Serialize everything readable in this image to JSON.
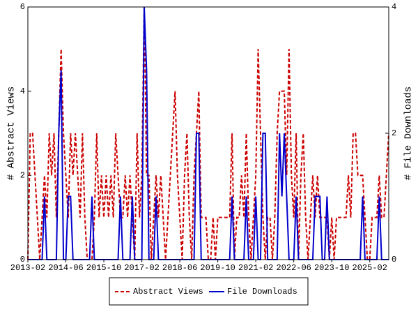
{
  "chart_data": {
    "type": "line",
    "y_label": "# Abstract Views",
    "y2_label": "# File Downloads",
    "x": [
      "2013-02",
      "2013-03",
      "2013-04",
      "2013-05",
      "2013-06",
      "2013-07",
      "2013-08",
      "2013-09",
      "2013-10",
      "2013-11",
      "2013-12",
      "2014-01",
      "2014-02",
      "2014-03",
      "2014-04",
      "2014-05",
      "2014-06",
      "2014-07",
      "2014-08",
      "2014-09",
      "2014-10",
      "2014-11",
      "2014-12",
      "2015-01",
      "2015-02",
      "2015-03",
      "2015-04",
      "2015-05",
      "2015-06",
      "2015-07",
      "2015-08",
      "2015-09",
      "2015-10",
      "2015-11",
      "2015-12",
      "2016-01",
      "2016-02",
      "2016-03",
      "2016-04",
      "2016-05",
      "2016-06",
      "2016-07",
      "2016-08",
      "2016-09",
      "2016-10",
      "2016-11",
      "2016-12",
      "2017-01",
      "2017-02",
      "2017-03",
      "2017-04",
      "2017-05",
      "2017-06",
      "2017-07",
      "2017-08",
      "2017-09",
      "2017-10",
      "2017-11",
      "2017-12",
      "2018-01",
      "2018-02",
      "2018-03",
      "2018-04",
      "2018-05",
      "2018-06",
      "2018-07",
      "2018-08",
      "2018-09",
      "2018-10",
      "2018-11",
      "2018-12",
      "2019-01",
      "2019-02",
      "2019-03",
      "2019-04",
      "2019-05",
      "2019-06",
      "2019-07",
      "2019-08",
      "2019-09",
      "2019-10",
      "2019-11",
      "2019-12",
      "2020-01",
      "2020-02",
      "2020-03",
      "2020-04",
      "2020-05",
      "2020-06",
      "2020-07",
      "2020-08",
      "2020-09",
      "2020-10",
      "2020-11",
      "2020-12",
      "2021-01",
      "2021-02",
      "2021-03",
      "2021-04",
      "2021-05",
      "2021-06",
      "2021-07",
      "2021-08",
      "2021-09",
      "2021-10",
      "2021-11",
      "2021-12",
      "2022-01",
      "2022-02",
      "2022-03",
      "2022-04",
      "2022-05",
      "2022-06",
      "2022-07",
      "2022-08",
      "2022-09",
      "2022-10",
      "2022-11",
      "2022-12",
      "2023-01",
      "2023-02",
      "2023-03",
      "2023-04",
      "2023-05",
      "2023-06",
      "2023-07",
      "2023-08",
      "2023-09",
      "2023-10",
      "2023-11",
      "2023-12",
      "2024-01",
      "2024-02",
      "2024-03",
      "2024-04",
      "2024-05",
      "2024-06",
      "2024-07",
      "2024-08",
      "2024-09",
      "2024-10",
      "2024-11",
      "2024-12",
      "2025-01",
      "2025-02",
      "2025-03",
      "2025-04",
      "2025-05",
      "2025-06",
      "2025-07",
      "2025-08",
      "2025-09",
      "2025-10"
    ],
    "xticks": [
      "2013-02",
      "2014-06",
      "2015-10",
      "2017-02",
      "2018-06",
      "2019-10",
      "2021-02",
      "2022-06",
      "2023-10",
      "2025-02"
    ],
    "series": [
      {
        "name": "Abstract Views",
        "color": "#cc0000",
        "dash": true,
        "values": [
          0,
          3,
          3,
          2,
          1,
          0,
          1,
          2,
          1,
          3,
          2,
          3,
          1,
          3,
          5,
          3,
          2,
          1,
          3,
          2,
          3,
          2,
          1,
          3,
          1,
          0,
          0,
          0,
          1,
          3,
          1,
          2,
          1,
          2,
          1,
          2,
          1,
          3,
          2,
          1,
          1,
          2,
          1,
          2,
          1,
          0,
          3,
          1,
          2,
          6,
          2,
          2,
          0,
          1,
          2,
          1,
          2,
          1,
          0,
          1,
          2,
          3,
          4,
          2,
          1,
          0,
          2,
          3,
          1,
          0,
          2,
          3,
          4,
          1,
          1,
          1,
          0,
          0,
          1,
          0,
          1,
          1,
          1,
          1,
          1,
          1,
          3,
          0,
          1,
          1,
          2,
          1,
          3,
          1,
          0,
          1,
          2,
          5,
          3,
          1,
          0,
          1,
          1,
          0,
          1,
          3,
          4,
          4,
          4,
          2,
          5,
          2,
          1,
          3,
          0,
          2,
          3,
          1,
          0,
          1,
          2,
          1,
          2,
          1,
          1,
          1,
          1,
          0,
          1,
          0,
          1,
          1,
          1,
          1,
          1,
          2,
          1,
          3,
          3,
          2,
          2,
          2,
          1,
          0,
          0,
          1,
          1,
          1,
          2,
          1,
          1,
          2,
          3
        ]
      },
      {
        "name": "File Downloads",
        "color": "#0000cc",
        "dash": false,
        "axis": "y2",
        "values": [
          0,
          0,
          0,
          0,
          0,
          0,
          0,
          1,
          0,
          0,
          0,
          0,
          0,
          2,
          3,
          0,
          0,
          1,
          1,
          0,
          0,
          0,
          0,
          0,
          0,
          0,
          0,
          1,
          0,
          0,
          0,
          0,
          0,
          0,
          0,
          0,
          0,
          0,
          0,
          1,
          0,
          0,
          0,
          0,
          1,
          0,
          0,
          0,
          0,
          4,
          3,
          0,
          0,
          0,
          1,
          0,
          0,
          0,
          0,
          0,
          0,
          0,
          0,
          0,
          0,
          0,
          0,
          0,
          0,
          0,
          0,
          2,
          2,
          0,
          0,
          0,
          0,
          0,
          0,
          0,
          0,
          0,
          0,
          0,
          0,
          0,
          1,
          0,
          0,
          0,
          0,
          0,
          1,
          0,
          0,
          0,
          1,
          0,
          0,
          2,
          2,
          0,
          0,
          0,
          0,
          0,
          2,
          1,
          2,
          1,
          0,
          0,
          0,
          1,
          0,
          0,
          0,
          0,
          0,
          0,
          0,
          1,
          1,
          1,
          0,
          0,
          1,
          0,
          0,
          0,
          0,
          0,
          0,
          0,
          0,
          0,
          0,
          0,
          0,
          0,
          0,
          1,
          0,
          0,
          0,
          0,
          0,
          0,
          1,
          0,
          0,
          0,
          0
        ]
      }
    ],
    "ylim": [
      0,
      6
    ],
    "yticks": [
      0,
      2,
      4,
      6
    ],
    "y2lim": [
      0,
      4
    ],
    "y2ticks": [
      0,
      2,
      4
    ],
    "grid": false,
    "legend": "bottom"
  }
}
